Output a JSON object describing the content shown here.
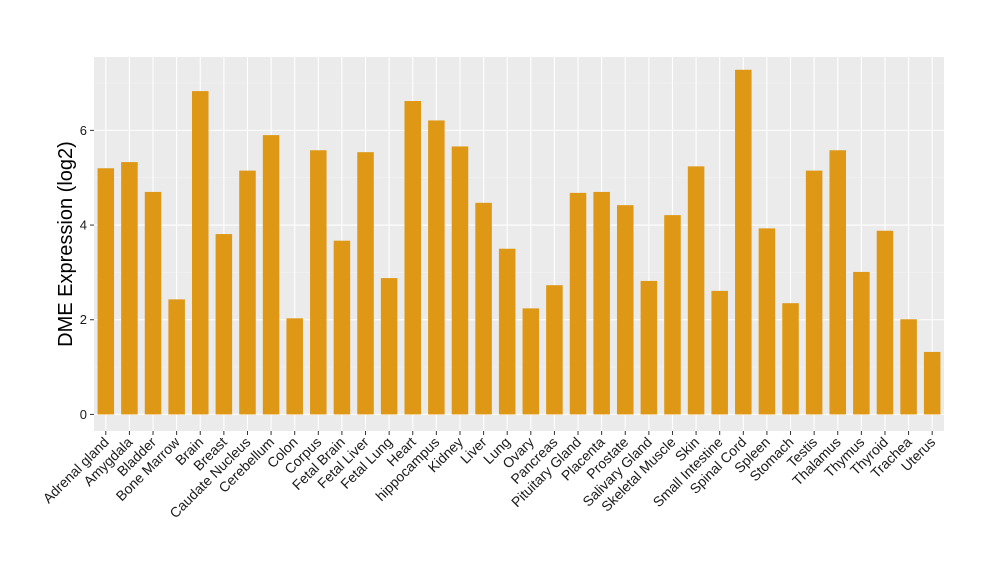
{
  "chart_data": {
    "type": "bar",
    "ylabel": "DME Expression (log2)",
    "xlabel": "",
    "ylim": [
      -0.35,
      7.55
    ],
    "yticks": [
      0,
      2,
      4,
      6
    ],
    "grid": true,
    "colors": {
      "bar": "#DE9816",
      "panel": "#EBEBEB",
      "grid_major": "#FFFFFF",
      "grid_minor": "#F4F4F4"
    },
    "categories": [
      "Adrenal gland",
      "Amygdala",
      "Bladder",
      "Bone Marrow",
      "Brain",
      "Breast",
      "Caudate Nucleus",
      "Cerebellum",
      "Colon",
      "Corpus",
      "Fetal Brain",
      "Fetal Liver",
      "Fetal Lung",
      "Heart",
      "hippocampus",
      "Kidney",
      "Liver",
      "Lung",
      "Ovary",
      "Pancreas",
      "Pituitary Gland",
      "Placenta",
      "Prostate",
      "Salivary Gland",
      "Skeletal Muscle",
      "Skin",
      "Small Intestine",
      "Spinal Cord",
      "Spleen",
      "Stomach",
      "Testis",
      "Thalamus",
      "Thymus",
      "Thyroid",
      "Trachea",
      "Uterus"
    ],
    "values": [
      5.2,
      5.33,
      4.7,
      2.43,
      6.83,
      3.81,
      5.15,
      5.9,
      2.03,
      5.58,
      3.67,
      5.54,
      2.88,
      6.62,
      6.21,
      5.66,
      4.47,
      3.5,
      2.24,
      2.73,
      4.68,
      4.7,
      4.42,
      2.82,
      4.21,
      5.24,
      2.61,
      7.28,
      3.93,
      2.35,
      5.15,
      5.58,
      3.01,
      3.88,
      2.01,
      1.32
    ]
  }
}
